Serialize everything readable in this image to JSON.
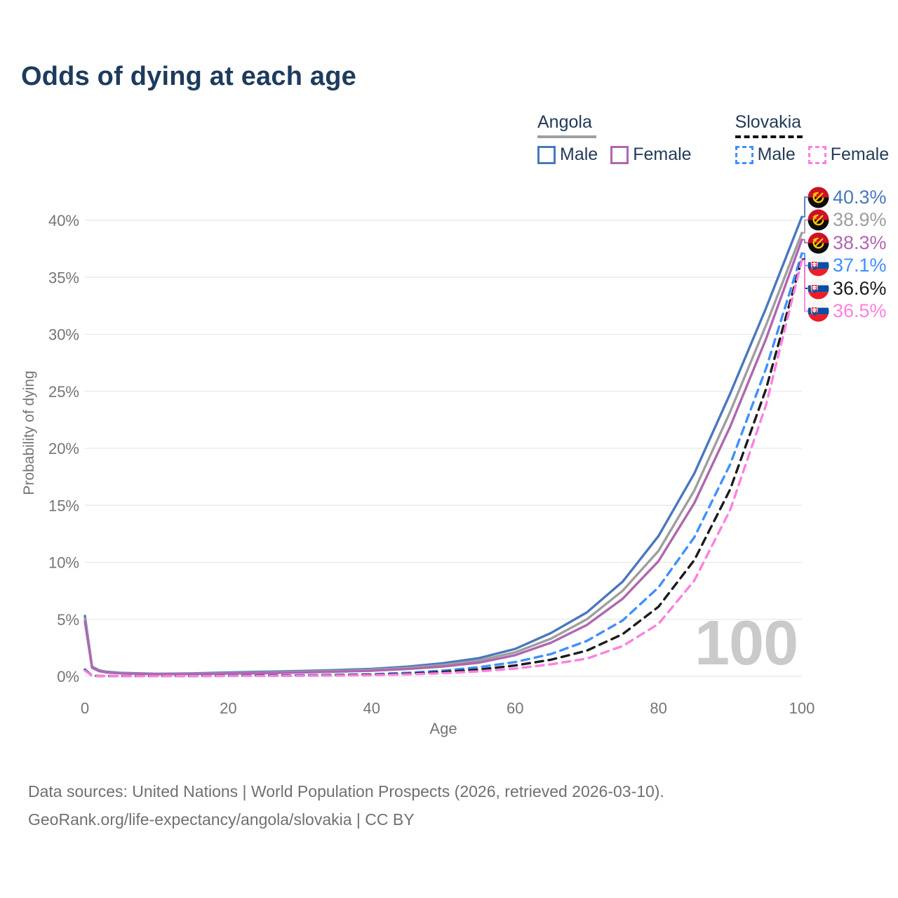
{
  "title": "Odds of dying at each age",
  "legend": {
    "groups": [
      {
        "name": "Angola",
        "line_style": "solid",
        "underline_color": "#a0a0a0",
        "items": [
          {
            "label": "Male",
            "color": "#4a77bd",
            "dash": false
          },
          {
            "label": "Female",
            "color": "#b066b0",
            "dash": false
          }
        ]
      },
      {
        "name": "Slovakia",
        "line_style": "dashed",
        "underline_color": "#111111",
        "items": [
          {
            "label": "Male",
            "color": "#4090fc",
            "dash": true
          },
          {
            "label": "Female",
            "color": "#fd80e1",
            "dash": true
          }
        ]
      }
    ]
  },
  "chart_data": {
    "type": "line",
    "title": "Odds of dying at each age",
    "xlabel": "Age",
    "ylabel": "Probability of dying",
    "x_range": [
      0,
      100
    ],
    "y_range_percent": [
      0,
      40
    ],
    "grid": "horizontal",
    "legend_position": "top-right",
    "x_ticks": [
      0,
      20,
      40,
      60,
      80,
      100
    ],
    "y_ticks": [
      {
        "v": 0,
        "label": "0%"
      },
      {
        "v": 5,
        "label": "5%"
      },
      {
        "v": 10,
        "label": "10%"
      },
      {
        "v": 15,
        "label": "15%"
      },
      {
        "v": 20,
        "label": "20%"
      },
      {
        "v": 25,
        "label": "25%"
      },
      {
        "v": 30,
        "label": "30%"
      },
      {
        "v": 35,
        "label": "35%"
      },
      {
        "v": 40,
        "label": "40%"
      }
    ],
    "ages": [
      0,
      1,
      2,
      3,
      5,
      10,
      15,
      20,
      25,
      30,
      35,
      40,
      45,
      50,
      55,
      60,
      65,
      70,
      75,
      80,
      85,
      90,
      95,
      100
    ],
    "series": [
      {
        "name": "Angola Male",
        "flag": "angola",
        "color": "#4a77bd",
        "dash": false,
        "end_label": "40.3%",
        "values": [
          5.3,
          0.85,
          0.52,
          0.4,
          0.3,
          0.22,
          0.26,
          0.33,
          0.4,
          0.46,
          0.54,
          0.65,
          0.85,
          1.15,
          1.6,
          2.4,
          3.8,
          5.6,
          8.3,
          12.3,
          17.8,
          24.8,
          32.3,
          40.3
        ]
      },
      {
        "name": "Angola",
        "flag": "angola",
        "color": "#9e9e9e",
        "dash": false,
        "end_label": "38.9%",
        "values": [
          5.05,
          0.8,
          0.48,
          0.37,
          0.27,
          0.2,
          0.23,
          0.28,
          0.34,
          0.4,
          0.47,
          0.57,
          0.74,
          1.0,
          1.4,
          2.1,
          3.3,
          5.0,
          7.5,
          11.0,
          16.3,
          23.2,
          30.8,
          38.9
        ]
      },
      {
        "name": "Angola Female",
        "flag": "angola",
        "color": "#b066b0",
        "dash": false,
        "end_label": "38.3%",
        "values": [
          4.8,
          0.75,
          0.45,
          0.34,
          0.25,
          0.18,
          0.2,
          0.24,
          0.28,
          0.33,
          0.4,
          0.49,
          0.64,
          0.86,
          1.2,
          1.85,
          2.95,
          4.5,
          6.8,
          10.1,
          15.2,
          21.9,
          29.6,
          38.3
        ]
      },
      {
        "name": "Slovakia Male",
        "flag": "slovakia",
        "color": "#4090fc",
        "dash": true,
        "end_label": "37.1%",
        "values": [
          0.6,
          0.05,
          0.03,
          0.025,
          0.02,
          0.015,
          0.03,
          0.06,
          0.08,
          0.09,
          0.12,
          0.18,
          0.3,
          0.5,
          0.8,
          1.25,
          1.95,
          3.1,
          4.9,
          7.8,
          12.2,
          18.6,
          27.0,
          37.1
        ]
      },
      {
        "name": "Slovakia",
        "flag": "slovakia",
        "color": "#1c1c1c",
        "dash": true,
        "end_label": "36.6%",
        "values": [
          0.55,
          0.045,
          0.027,
          0.022,
          0.018,
          0.013,
          0.025,
          0.045,
          0.06,
          0.07,
          0.1,
          0.14,
          0.23,
          0.38,
          0.6,
          0.95,
          1.45,
          2.25,
          3.7,
          6.1,
          10.2,
          16.4,
          25.2,
          36.6
        ]
      },
      {
        "name": "Slovakia Female",
        "flag": "slovakia",
        "color": "#fd80e1",
        "dash": true,
        "end_label": "36.5%",
        "values": [
          0.5,
          0.04,
          0.025,
          0.02,
          0.015,
          0.012,
          0.02,
          0.03,
          0.04,
          0.05,
          0.07,
          0.1,
          0.17,
          0.27,
          0.44,
          0.68,
          1.05,
          1.55,
          2.65,
          4.6,
          8.4,
          14.6,
          23.8,
          36.5
        ]
      }
    ],
    "watermark": "100"
  },
  "flag_colors": {
    "angola_red": "#cc1126",
    "angola_black": "#0d0d0d",
    "angola_yellow": "#ffcb00",
    "slovakia_white": "#f4f5f4",
    "slovakia_blue": "#0b4ea2",
    "slovakia_red": "#ee1c25"
  },
  "footer": {
    "line1": "Data sources: United Nations | World Population Prospects (2026, retrieved 2026-03-10).",
    "line2": "GeoRank.org/life-expectancy/angola/slovakia | CC BY"
  }
}
